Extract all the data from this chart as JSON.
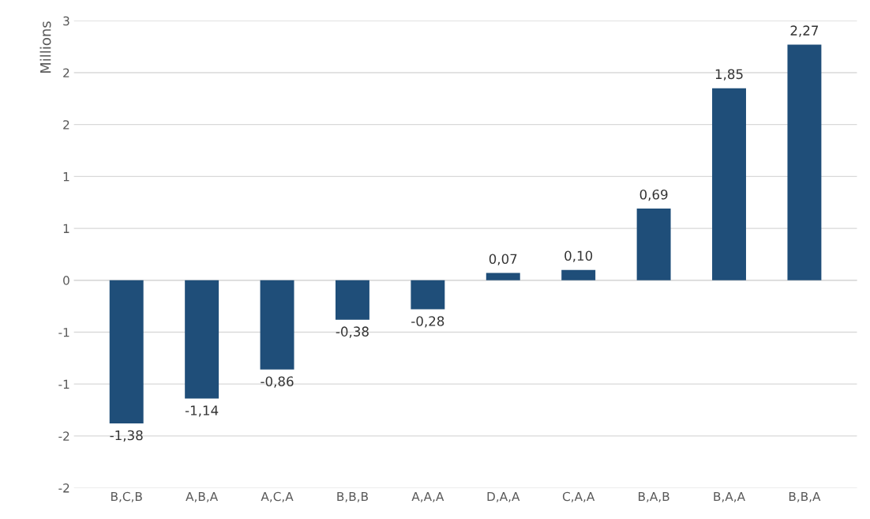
{
  "chart_data": {
    "type": "bar",
    "ylabel": "Millions",
    "categories": [
      "B,C,B",
      "A,B,A",
      "A,C,A",
      "B,B,B",
      "A,A,A",
      "D,A,A",
      "C,A,A",
      "B,A,B",
      "B,A,A",
      "B,B,A"
    ],
    "values": [
      -1.38,
      -1.14,
      -0.86,
      -0.38,
      -0.28,
      0.07,
      0.1,
      0.69,
      1.85,
      2.27
    ],
    "value_labels": [
      "-1,38",
      "-1,14",
      "-0,86",
      "-0,38",
      "-0,28",
      "0,07",
      "0,10",
      "0,69",
      "1,85",
      "2,27"
    ],
    "color": "#1f4e79",
    "ylim": [
      -2.0,
      2.5
    ],
    "yticks": [
      {
        "value": -2.0,
        "label": "-2"
      },
      {
        "value": -1.5,
        "label": "-2"
      },
      {
        "value": -1.0,
        "label": "-1"
      },
      {
        "value": -0.5,
        "label": "-1"
      },
      {
        "value": 0,
        "label": "0"
      },
      {
        "value": 0.5,
        "label": "1"
      },
      {
        "value": 1.0,
        "label": "1"
      },
      {
        "value": 1.5,
        "label": "2"
      },
      {
        "value": 2.0,
        "label": "2"
      },
      {
        "value": 2.5,
        "label": "3"
      }
    ],
    "grid": "y"
  }
}
